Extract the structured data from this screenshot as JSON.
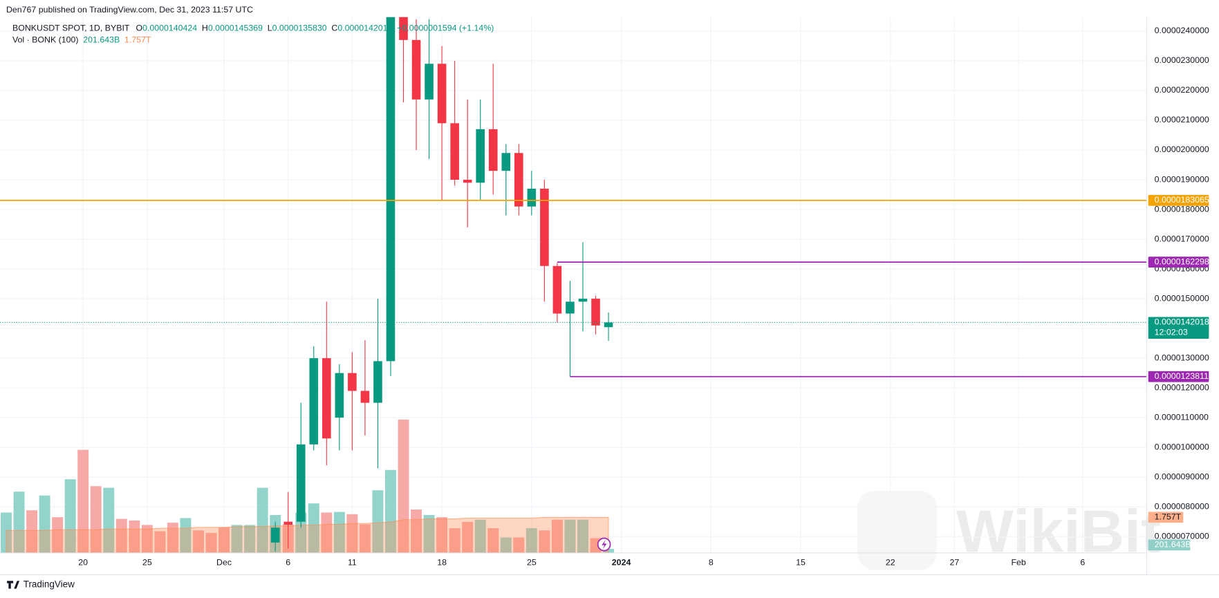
{
  "chart_data": {
    "type": "candlestick",
    "publisher": "Den767 published on TradingView.com, Dec 31, 2023 11:57 UTC",
    "legend": {
      "symbol": "BONKUSDT SPOT, 1D, BYBIT",
      "fields": [
        "O",
        "H",
        "L",
        "C"
      ],
      "field_values": [
        "0.0000140424",
        "0.0000145369",
        "0.0000135830",
        "0.0000142018"
      ],
      "change": "+0.0000001594 (+1.14%)",
      "volume_title": "Vol · BONK (100)"
    },
    "footer": "TradingView",
    "watermark": "WikiBit",
    "up_color": "#089981",
    "down_color": "#f23645",
    "xlim": [
      "2023-11-14",
      "2024-02-11"
    ],
    "xticks": [
      {
        "value": "2023-11-20",
        "label": "20"
      },
      {
        "value": "2023-11-25",
        "label": "25"
      },
      {
        "value": "2023-12-01",
        "label": "Dec"
      },
      {
        "value": "2023-12-06",
        "label": "6"
      },
      {
        "value": "2023-12-11",
        "label": "11"
      },
      {
        "value": "2023-12-18",
        "label": "18"
      },
      {
        "value": "2023-12-25",
        "label": "25"
      },
      {
        "value": "2024-01-01",
        "label": "2024",
        "bold": true
      },
      {
        "value": "2024-01-08",
        "label": "8"
      },
      {
        "value": "2024-01-15",
        "label": "15"
      },
      {
        "value": "2024-01-22",
        "label": "22"
      },
      {
        "value": "2024-01-27",
        "label": "27"
      },
      {
        "value": "2024-02-01",
        "label": "Feb"
      },
      {
        "value": "2024-02-06",
        "label": "6"
      }
    ],
    "ylim": [
      6.45e-06,
      2.447e-05
    ],
    "yticks": [
      {
        "value": 7e-06,
        "label": "0.0000070000"
      },
      {
        "value": 8e-06,
        "label": "0.0000080000"
      },
      {
        "value": 9e-06,
        "label": "0.0000090000"
      },
      {
        "value": 1e-05,
        "label": "0.0000100000"
      },
      {
        "value": 1.1e-05,
        "label": "0.0000110000"
      },
      {
        "value": 1.2e-05,
        "label": "0.0000120000"
      },
      {
        "value": 1.3e-05,
        "label": "0.0000130000"
      },
      {
        "value": 1.4e-05,
        "label": "0.0000140000"
      },
      {
        "value": 1.5e-05,
        "label": "0.0000150000"
      },
      {
        "value": 1.6e-05,
        "label": "0.0000160000"
      },
      {
        "value": 1.7e-05,
        "label": "0.0000170000"
      },
      {
        "value": 1.8e-05,
        "label": "0.0000180000"
      },
      {
        "value": 1.9e-05,
        "label": "0.0000190000"
      },
      {
        "value": 2e-05,
        "label": "0.0000200000"
      },
      {
        "value": 2.1e-05,
        "label": "0.0000210000"
      },
      {
        "value": 2.2e-05,
        "label": "0.0000220000"
      },
      {
        "value": 2.3e-05,
        "label": "0.0000230000"
      },
      {
        "value": 2.4e-05,
        "label": "0.0000240000"
      }
    ],
    "grid": true,
    "candles": {
      "x": [
        "2023-12-05",
        "2023-12-06",
        "2023-12-07",
        "2023-12-08",
        "2023-12-09",
        "2023-12-10",
        "2023-12-11",
        "2023-12-12",
        "2023-12-13",
        "2023-12-14",
        "2023-12-15",
        "2023-12-16",
        "2023-12-17",
        "2023-12-18",
        "2023-12-19",
        "2023-12-20",
        "2023-12-21",
        "2023-12-22",
        "2023-12-23",
        "2023-12-24",
        "2023-12-25",
        "2023-12-26",
        "2023-12-27",
        "2023-12-28",
        "2023-12-29",
        "2023-12-30",
        "2023-12-31"
      ],
      "open": [
        6.8e-06,
        7.5e-06,
        7.5e-06,
        1.01e-05,
        1.3e-05,
        1.1e-05,
        1.25e-05,
        1.19e-05,
        1.15e-05,
        1.29e-05,
        2.52e-05,
        2.37e-05,
        2.17e-05,
        2.29e-05,
        2.09e-05,
        1.9e-05,
        1.89e-05,
        2.07e-05,
        1.93e-05,
        1.99e-05,
        1.81e-05,
        1.87e-05,
        1.61e-05,
        1.45e-05,
        1.49e-05,
        1.5e-05,
        1.40424e-05
      ],
      "high": [
        7.5e-06,
        8.5e-06,
        1.15e-05,
        1.34e-05,
        1.49e-05,
        1.28e-05,
        1.32e-05,
        1.36e-05,
        1.5e-05,
        2.58e-05,
        2.58e-05,
        2.44e-05,
        2.44e-05,
        2.35e-05,
        2.3e-05,
        2.17e-05,
        2.17e-05,
        2.29e-05,
        2.02e-05,
        2.02e-05,
        1.93e-05,
        1.9e-05,
        1.62e-05,
        1.56e-05,
        1.69e-05,
        1.51e-05,
        1.45369e-05
      ],
      "low": [
        6.5e-06,
        6.6e-06,
        7.3e-06,
        9.9e-06,
        9.4e-06,
        9.9e-06,
        9.9e-06,
        1.04e-05,
        9.3e-06,
        1.24e-05,
        2.16e-05,
        2e-05,
        1.97e-05,
        1.83e-05,
        1.88e-05,
        1.74e-05,
        1.83e-05,
        1.85e-05,
        1.78e-05,
        1.78e-05,
        1.78e-05,
        1.49e-05,
        1.42e-05,
        1.23811e-05,
        1.39e-05,
        1.38e-05,
        1.3583e-05
      ],
      "close": [
        7.3e-06,
        7.4e-06,
        1.01e-05,
        1.3e-05,
        1.03e-05,
        1.25e-05,
        1.19e-05,
        1.15e-05,
        1.29e-05,
        2.52e-05,
        2.37e-05,
        2.17e-05,
        2.29e-05,
        2.09e-05,
        1.9e-05,
        1.89e-05,
        2.07e-05,
        1.93e-05,
        1.99e-05,
        1.81e-05,
        1.87e-05,
        1.61e-05,
        1.45e-05,
        1.49e-05,
        1.5e-05,
        1.41e-05,
        1.42018e-05
      ]
    },
    "y2lim": [
      0,
      26400000000000.0
    ],
    "volume": {
      "x": [
        "2023-11-14",
        "2023-11-15",
        "2023-11-16",
        "2023-11-17",
        "2023-11-18",
        "2023-11-19",
        "2023-11-20",
        "2023-11-21",
        "2023-11-22",
        "2023-11-23",
        "2023-11-24",
        "2023-11-25",
        "2023-11-26",
        "2023-11-27",
        "2023-11-28",
        "2023-11-29",
        "2023-11-30",
        "2023-12-01",
        "2023-12-02",
        "2023-12-03",
        "2023-12-04",
        "2023-12-05",
        "2023-12-06",
        "2023-12-07",
        "2023-12-08",
        "2023-12-09",
        "2023-12-10",
        "2023-12-11",
        "2023-12-12",
        "2023-12-13",
        "2023-12-14",
        "2023-12-15",
        "2023-12-16",
        "2023-12-17",
        "2023-12-18",
        "2023-12-19",
        "2023-12-20",
        "2023-12-21",
        "2023-12-22",
        "2023-12-23",
        "2023-12-24",
        "2023-12-25",
        "2023-12-26",
        "2023-12-27",
        "2023-12-28",
        "2023-12-29",
        "2023-12-30",
        "2023-12-31"
      ],
      "values": [
        1990000000000.0,
        3020000000000.0,
        2100000000000.0,
        2830000000000.0,
        1760000000000.0,
        3630000000000.0,
        5080000000000.0,
        3290000000000.0,
        3210000000000.0,
        1680000000000.0,
        1600000000000.0,
        1380000000000.0,
        1070000000000.0,
        1490000000000.0,
        1720000000000.0,
        1110000000000.0,
        990000000000.0,
        1260000000000.0,
        1380000000000.0,
        1380000000000.0,
        3210000000000.0,
        1870000000000.0,
        1410000000000.0,
        1990000000000.0,
        2440000000000.0,
        1990000000000.0,
        2020000000000.0,
        1910000000000.0,
        1410000000000.0,
        3090000000000.0,
        4090000000000.0,
        6570000000000.0,
        2140000000000.0,
        1870000000000.0,
        1760000000000.0,
        1220000000000.0,
        1530000000000.0,
        1640000000000.0,
        1220000000000.0,
        760000000000.0,
        760000000000.0,
        1220000000000.0,
        1110000000000.0,
        1640000000000.0,
        1640000000000.0,
        1640000000000.0,
        730000000000.0,
        201643000000.0
      ],
      "colors": [
        "#92d4cc",
        "#92d4cc",
        "#f7a9a8",
        "#92d4cc",
        "#f7a9a8",
        "#92d4cc",
        "#f7a9a8",
        "#f7a9a8",
        "#92d4cc",
        "#f7a9a8",
        "#f7a9a8",
        "#f7a9a8",
        "#f7a9a8",
        "#f7a9a8",
        "#92d4cc",
        "#f7a9a8",
        "#f7a9a8",
        "#f7a9a8",
        "#92d4cc",
        "#92d4cc",
        "#92d4cc",
        "#92d4cc",
        "#f7a9a8",
        "#92d4cc",
        "#92d4cc",
        "#f7a9a8",
        "#92d4cc",
        "#f7a9a8",
        "#f7a9a8",
        "#92d4cc",
        "#92d4cc",
        "#f7a9a8",
        "#f7a9a8",
        "#92d4cc",
        "#f7a9a8",
        "#f7a9a8",
        "#f7a9a8",
        "#92d4cc",
        "#f7a9a8",
        "#92d4cc",
        "#f7a9a8",
        "#92d4cc",
        "#f7a9a8",
        "#f7a9a8",
        "#92d4cc",
        "#92d4cc",
        "#f7a9a8",
        "#92d4cc"
      ],
      "last_label": "201.643B",
      "label_color": "#8fcfc7"
    },
    "volume_ma": {
      "values": [
        1108000000000.0,
        1108000000000.0,
        1108000000000.0,
        1108000000000.0,
        1146000000000.0,
        1146000000000.0,
        1146000000000.0,
        1146000000000.0,
        1184000000000.0,
        1184000000000.0,
        1184000000000.0,
        1184000000000.0,
        1222000000000.0,
        1222000000000.0,
        1222000000000.0,
        1261000000000.0,
        1261000000000.0,
        1261000000000.0,
        1299000000000.0,
        1299000000000.0,
        1299000000000.0,
        1337000000000.0,
        1337000000000.0,
        1375000000000.0,
        1375000000000.0,
        1413000000000.0,
        1413000000000.0,
        1452000000000.0,
        1452000000000.0,
        1490000000000.0,
        1528000000000.0,
        1643000000000.0,
        1643000000000.0,
        1681000000000.0,
        1681000000000.0,
        1681000000000.0,
        1719000000000.0,
        1719000000000.0,
        1719000000000.0,
        1719000000000.0,
        1719000000000.0,
        1719000000000.0,
        1757000000000.0,
        1757000000000.0,
        1757000000000.0,
        1757000000000.0,
        1757000000000.0,
        1757000000000.0
      ],
      "last_label": "1.757T",
      "color": "#ff8a50",
      "label_color": "#ffb08a"
    },
    "levels": [
      {
        "value": 1.83065e-05,
        "label": "0.0000183065",
        "color": "#f5a300"
      },
      {
        "value": 1.62298e-05,
        "label": "0.0000162298",
        "color": "#9c27b0",
        "from": "2023-12-27"
      },
      {
        "value": 1.23811e-05,
        "label": "0.0000123811",
        "color": "#9c27b0",
        "from": "2023-12-28"
      }
    ],
    "last_price": {
      "value": 1.42018e-05,
      "label": "0.0000142018",
      "countdown": "12:02:03",
      "color": "#089981"
    }
  }
}
